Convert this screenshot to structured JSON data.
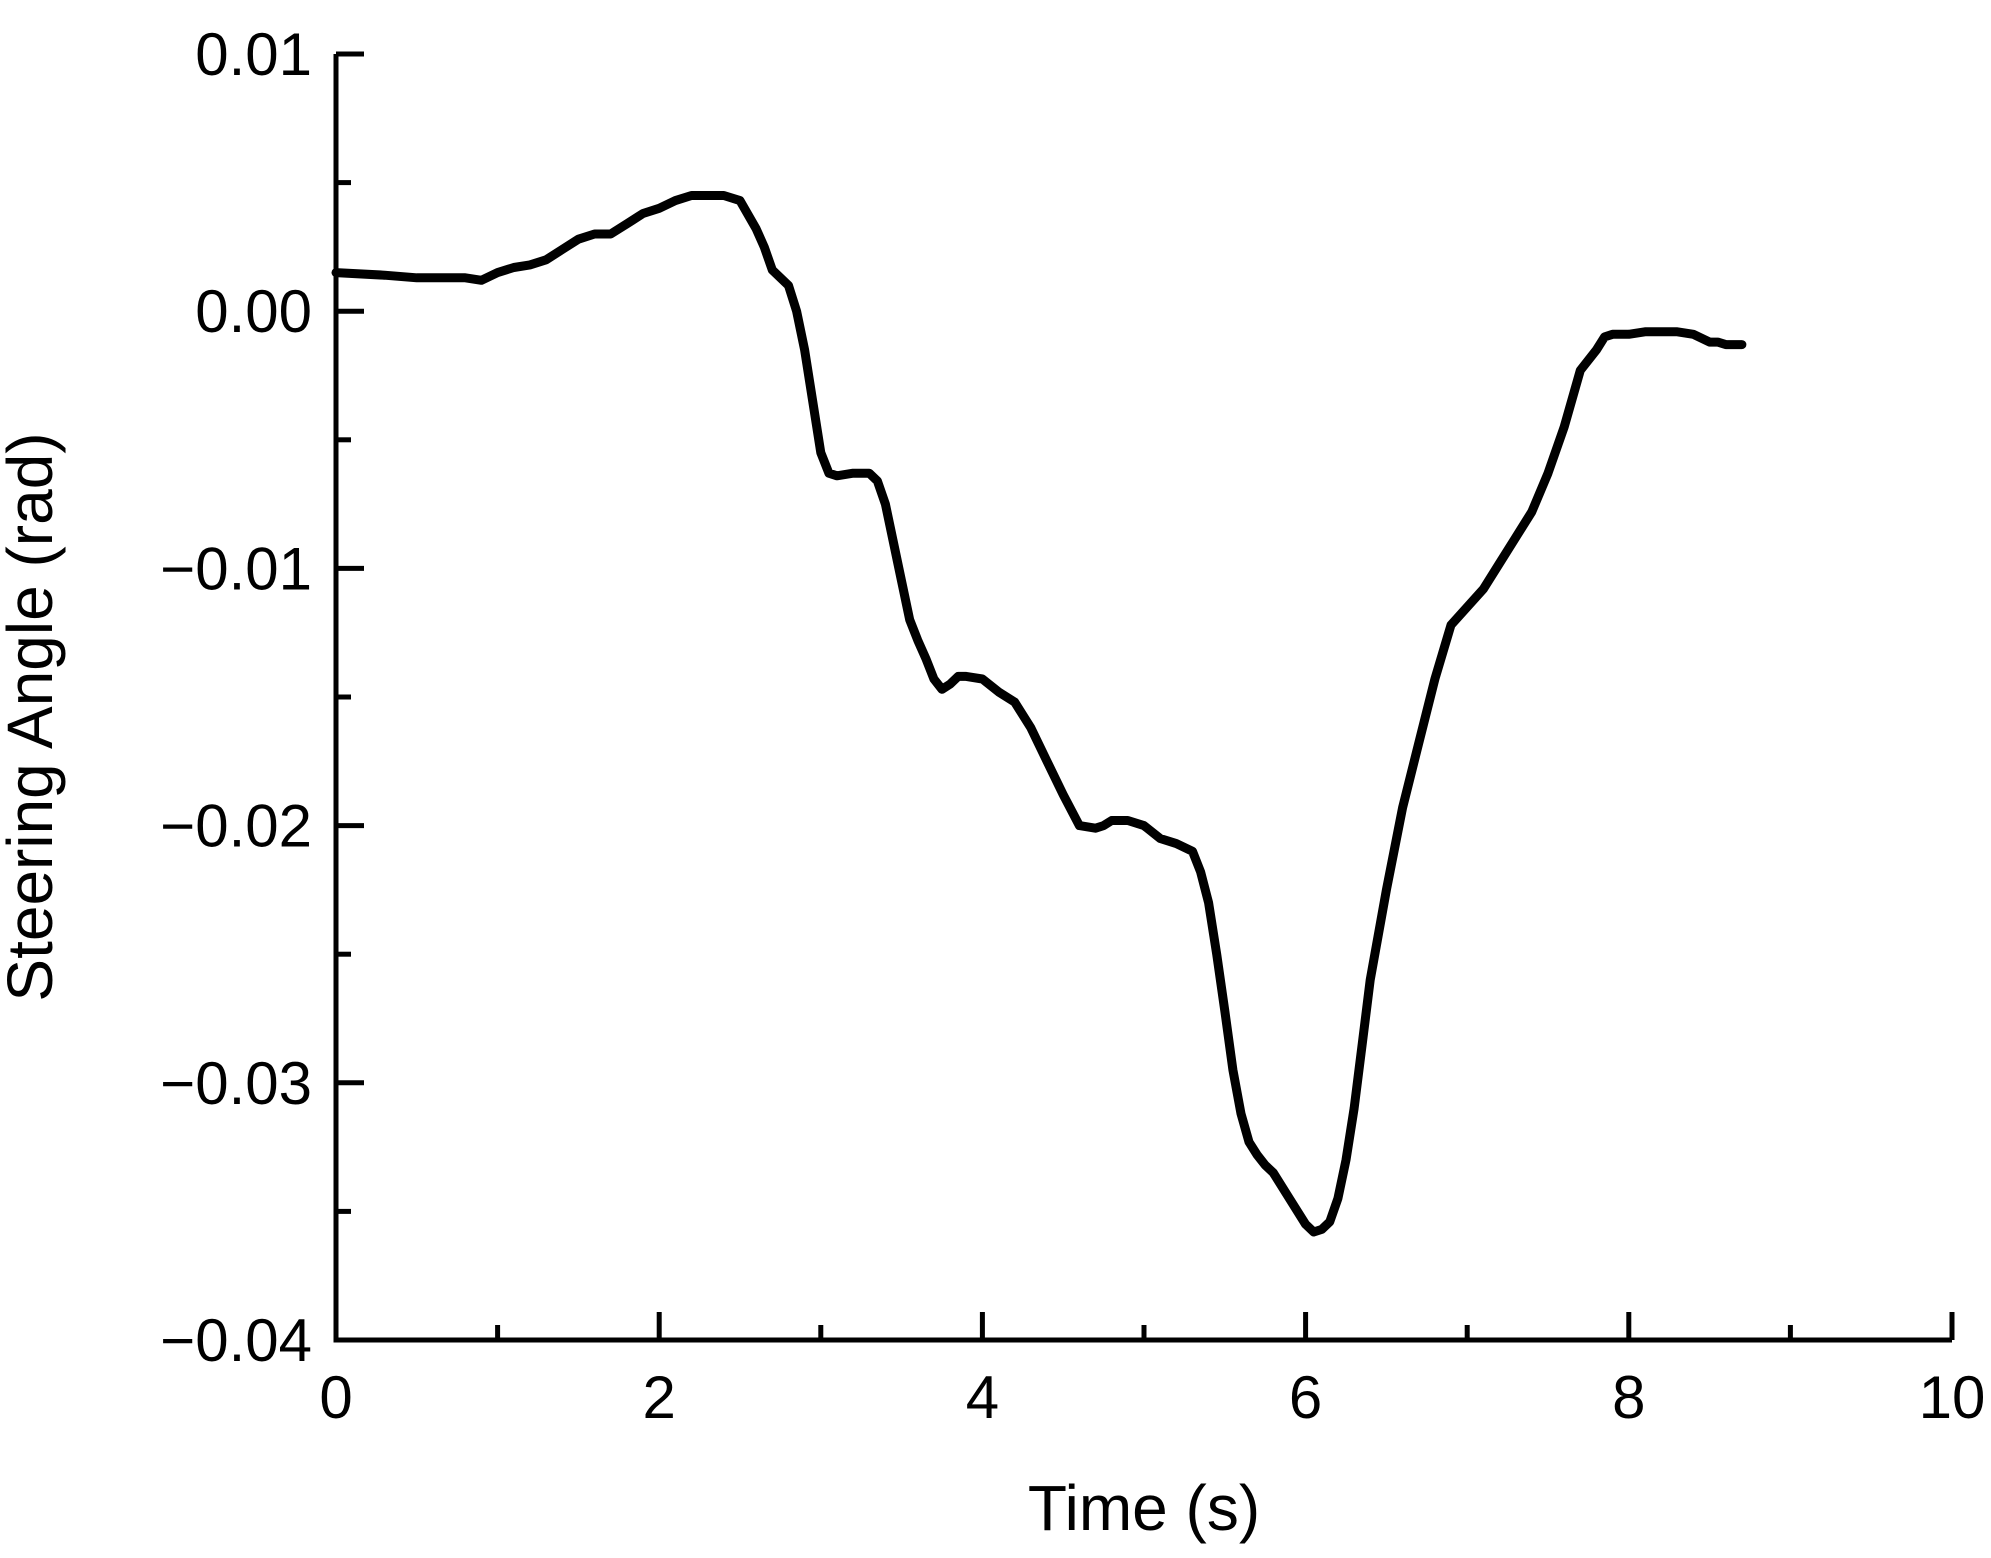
{
  "chart_data": {
    "type": "line",
    "title": "",
    "xlabel": "Time (s)",
    "ylabel": "Steering Angle (rad)",
    "xlim": [
      0,
      10
    ],
    "ylim": [
      -0.04,
      0.01
    ],
    "grid": false,
    "legend": "none",
    "x_ticks": [
      0,
      2,
      4,
      6,
      8,
      10
    ],
    "x_tick_labels": [
      "0",
      "2",
      "4",
      "6",
      "8",
      "10"
    ],
    "x_minor_ticks": [
      1,
      3,
      5,
      7,
      9
    ],
    "y_ticks": [
      0.01,
      0.0,
      -0.01,
      -0.02,
      -0.03,
      -0.04
    ],
    "y_tick_labels": [
      "0.01",
      "0.00",
      "−0.01",
      "−0.02",
      "−0.03",
      "−0.04"
    ],
    "y_minor_ticks": [
      0.005,
      -0.005,
      -0.015,
      -0.025,
      -0.035
    ],
    "series": [
      {
        "color": "#000000",
        "x": [
          0,
          0.3,
          0.5,
          0.8,
          0.9,
          1.0,
          1.1,
          1.2,
          1.3,
          1.4,
          1.5,
          1.6,
          1.7,
          1.8,
          1.9,
          2.0,
          2.1,
          2.2,
          2.3,
          2.4,
          2.5,
          2.6,
          2.65,
          2.7,
          2.8,
          2.85,
          2.9,
          2.95,
          3.0,
          3.05,
          3.1,
          3.2,
          3.3,
          3.35,
          3.4,
          3.45,
          3.5,
          3.55,
          3.6,
          3.65,
          3.7,
          3.75,
          3.8,
          3.85,
          3.9,
          4.0,
          4.1,
          4.2,
          4.3,
          4.4,
          4.5,
          4.6,
          4.7,
          4.75,
          4.8,
          4.9,
          5.0,
          5.1,
          5.2,
          5.3,
          5.35,
          5.4,
          5.45,
          5.5,
          5.55,
          5.6,
          5.65,
          5.7,
          5.75,
          5.8,
          5.9,
          6.0,
          6.05,
          6.1,
          6.15,
          6.2,
          6.25,
          6.3,
          6.35,
          6.4,
          6.5,
          6.6,
          6.7,
          6.8,
          6.9,
          7.0,
          7.1,
          7.2,
          7.3,
          7.4,
          7.5,
          7.6,
          7.7,
          7.8,
          7.85,
          7.9,
          7.95,
          8.0,
          8.1,
          8.2,
          8.3,
          8.4,
          8.5,
          8.55,
          8.6,
          8.7
        ],
        "y": [
          0.0015,
          0.0014,
          0.0013,
          0.0013,
          0.0012,
          0.0015,
          0.0017,
          0.0018,
          0.002,
          0.0024,
          0.0028,
          0.003,
          0.003,
          0.0034,
          0.0038,
          0.004,
          0.0043,
          0.0045,
          0.0045,
          0.0045,
          0.0043,
          0.0032,
          0.0025,
          0.0016,
          0.001,
          0.0,
          -0.0015,
          -0.0035,
          -0.0055,
          -0.0063,
          -0.0064,
          -0.0063,
          -0.0063,
          -0.0066,
          -0.0075,
          -0.009,
          -0.0105,
          -0.012,
          -0.0128,
          -0.0135,
          -0.0143,
          -0.0147,
          -0.0145,
          -0.0142,
          -0.0142,
          -0.0143,
          -0.0148,
          -0.0152,
          -0.0162,
          -0.0175,
          -0.0188,
          -0.02,
          -0.0201,
          -0.02,
          -0.0198,
          -0.0198,
          -0.02,
          -0.0205,
          -0.0207,
          -0.021,
          -0.0218,
          -0.023,
          -0.025,
          -0.0272,
          -0.0295,
          -0.0312,
          -0.0323,
          -0.0328,
          -0.0332,
          -0.0335,
          -0.0345,
          -0.0355,
          -0.0358,
          -0.0357,
          -0.0354,
          -0.0345,
          -0.033,
          -0.031,
          -0.0285,
          -0.026,
          -0.0225,
          -0.0193,
          -0.0168,
          -0.0143,
          -0.0122,
          -0.0115,
          -0.0108,
          -0.0098,
          -0.0088,
          -0.0078,
          -0.0063,
          -0.0045,
          -0.0023,
          -0.0015,
          -0.001,
          -0.0009,
          -0.0009,
          -0.0009,
          -0.0008,
          -0.0008,
          -0.0008,
          -0.0009,
          -0.0012,
          -0.0012,
          -0.0013,
          -0.0013
        ]
      }
    ]
  }
}
